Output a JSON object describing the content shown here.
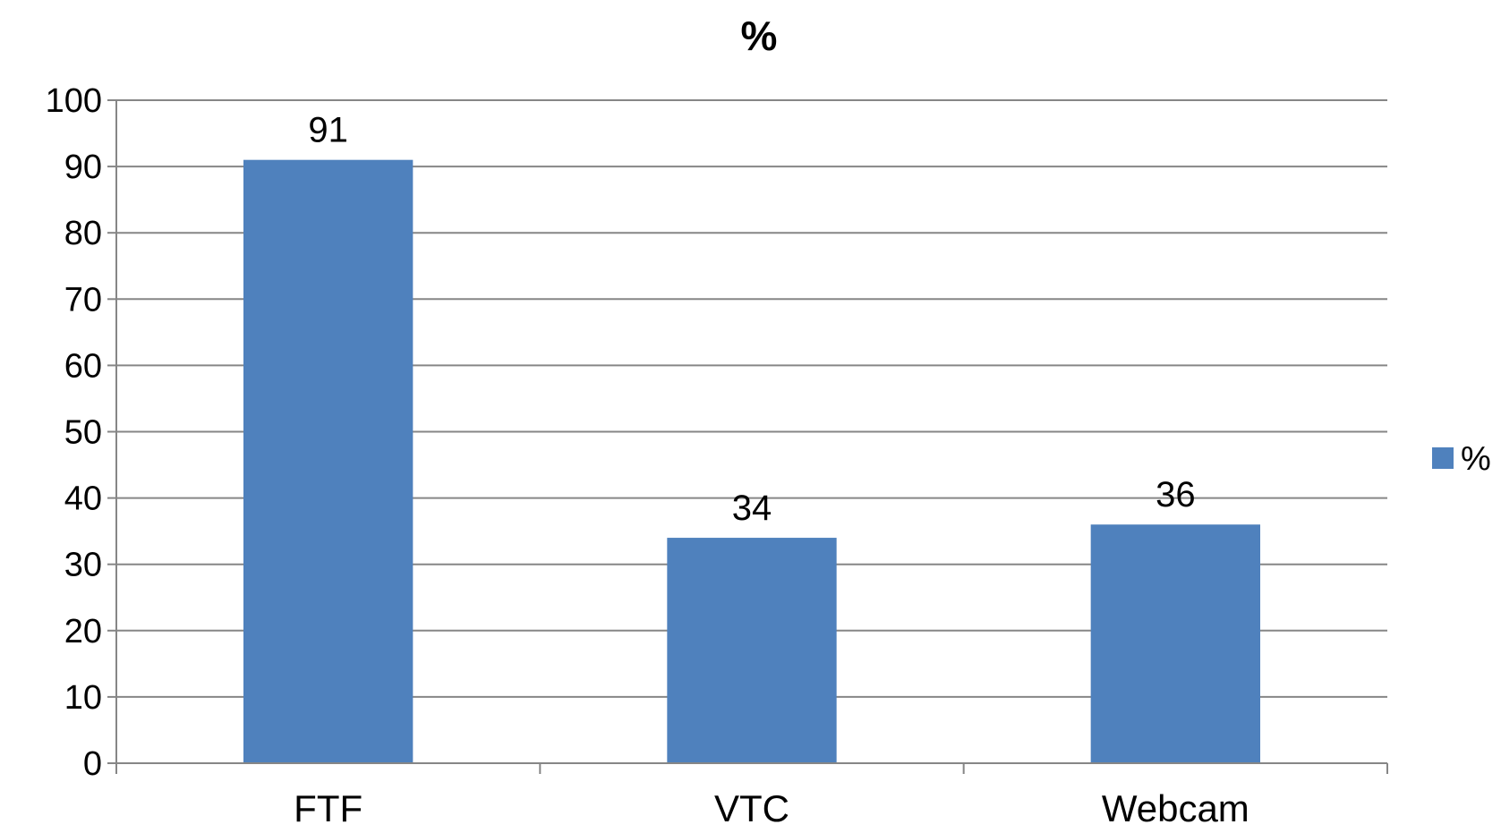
{
  "chart_data": {
    "type": "bar",
    "title": "%",
    "categories": [
      "FTF",
      "VTC",
      "Webcam"
    ],
    "series": [
      {
        "name": "%",
        "values": [
          91,
          34,
          36
        ]
      }
    ],
    "ylim": [
      0,
      100
    ],
    "yticks": [
      0,
      10,
      20,
      30,
      40,
      50,
      60,
      70,
      80,
      90,
      100
    ],
    "grid": true,
    "legend": "right",
    "data_labels": true,
    "colors": {
      "bar": "#4F81BD",
      "grid": "#868686",
      "axis": "#868686"
    }
  }
}
